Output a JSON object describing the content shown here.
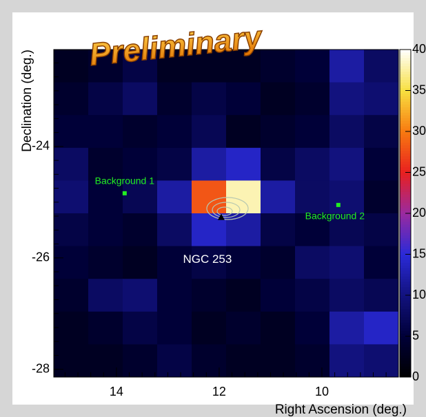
{
  "chart_data": {
    "type": "heatmap",
    "title": "Preliminary",
    "x_label": "Right Ascension (deg.)",
    "y_label": "Declination (deg.)",
    "xlim": [
      15.22,
      8.51
    ],
    "ylim": [
      -28.14,
      -22.26
    ],
    "xticks": [
      14,
      12,
      10
    ],
    "yticks": [
      -24,
      -26,
      -28
    ],
    "zlim": [
      0,
      40
    ],
    "zticks": [
      0,
      5,
      10,
      15,
      20,
      25,
      30,
      35,
      40
    ],
    "colors": [
      "#000000",
      "#000038",
      "#12127e",
      "#2a2ad8",
      "#9a2aa0",
      "#e82020",
      "#f87a10",
      "#f8e040",
      "#ffffff"
    ],
    "z": [
      [
        3,
        4,
        6,
        3,
        3,
        3,
        4,
        5,
        12,
        8
      ],
      [
        4,
        6,
        8,
        4,
        6,
        5,
        3,
        4,
        10,
        9
      ],
      [
        5,
        5,
        4,
        5,
        7,
        3,
        4,
        5,
        8,
        6
      ],
      [
        8,
        4,
        5,
        6,
        12,
        14,
        6,
        8,
        10,
        5
      ],
      [
        9,
        5,
        7,
        12,
        28,
        38,
        12,
        8,
        9,
        4
      ],
      [
        6,
        5,
        4,
        8,
        14,
        12,
        6,
        5,
        7,
        6
      ],
      [
        5,
        4,
        3,
        5,
        6,
        5,
        4,
        8,
        9,
        5
      ],
      [
        4,
        8,
        9,
        5,
        4,
        3,
        5,
        6,
        8,
        7
      ],
      [
        3,
        4,
        6,
        5,
        3,
        4,
        3,
        5,
        12,
        14
      ],
      [
        3,
        3,
        4,
        6,
        4,
        3,
        3,
        4,
        10,
        9
      ]
    ],
    "annotations": [
      {
        "text": "Background 1",
        "x": 13.84,
        "y": -24.84,
        "color": "#22ee22"
      },
      {
        "text": "Background 2",
        "x": 9.68,
        "y": -25.05,
        "color": "#22ee22"
      },
      {
        "text": "NGC 253",
        "x": 11.96,
        "y": -25.27,
        "color": "#ffffff"
      }
    ]
  }
}
